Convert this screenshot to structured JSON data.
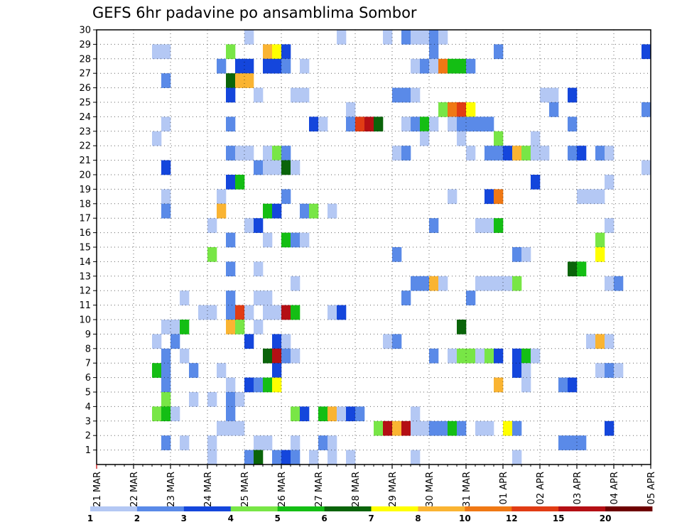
{
  "chart_data": {
    "type": "heatmap",
    "title": "GEFS 6hr padavine po ansamblima Sombor",
    "xlabel": "",
    "ylabel": "",
    "x_ticks": [
      "21 MAR",
      "22 MAR",
      "23 MAR",
      "24 MAR",
      "25 MAR",
      "26 MAR",
      "27 MAR",
      "28 MAR",
      "29 MAR",
      "30 MAR",
      "31 MAR",
      "01 APR",
      "02 APR",
      "03 APR",
      "04 APR",
      "05 APR"
    ],
    "y_ticks": [
      "1",
      "2",
      "3",
      "4",
      "5",
      "6",
      "7",
      "8",
      "9",
      "10",
      "11",
      "12",
      "13",
      "14",
      "15",
      "16",
      "17",
      "18",
      "19",
      "20",
      "21",
      "22",
      "23",
      "24",
      "25",
      "26",
      "27",
      "28",
      "29",
      "30"
    ],
    "x_range": [
      0,
      60
    ],
    "y_range": [
      0,
      30
    ],
    "grid": true,
    "legend_position": "bottom",
    "color_levels": [
      "1",
      "2",
      "3",
      "4",
      "5",
      "6",
      "7",
      "8",
      "10",
      "12",
      "15",
      "20"
    ],
    "colors": [
      "#b4c8f4",
      "#5a8ae8",
      "#1446dc",
      "#78e646",
      "#14be14",
      "#0a640a",
      "#ffff00",
      "#fab432",
      "#f07814",
      "#e13c14",
      "#b40f14",
      "#6e0000"
    ],
    "cells": [
      [
        6,
        29,
        0
      ],
      [
        7,
        29,
        0
      ],
      [
        16,
        30,
        0
      ],
      [
        26,
        30,
        0
      ],
      [
        31,
        30,
        0
      ],
      [
        33,
        30,
        1
      ],
      [
        34,
        30,
        0
      ],
      [
        35,
        30,
        0
      ],
      [
        36,
        30,
        1
      ],
      [
        37,
        30,
        0
      ],
      [
        14,
        29,
        3
      ],
      [
        18,
        29,
        7
      ],
      [
        19,
        29,
        6
      ],
      [
        20,
        29,
        2
      ],
      [
        36,
        29,
        1
      ],
      [
        43,
        29,
        1
      ],
      [
        59,
        29,
        2
      ],
      [
        13,
        28,
        1
      ],
      [
        15,
        28,
        2
      ],
      [
        16,
        28,
        2
      ],
      [
        18,
        28,
        2
      ],
      [
        19,
        28,
        2
      ],
      [
        20,
        28,
        1
      ],
      [
        22,
        28,
        0
      ],
      [
        34,
        28,
        0
      ],
      [
        35,
        28,
        1
      ],
      [
        36,
        28,
        0
      ],
      [
        37,
        28,
        8
      ],
      [
        38,
        28,
        4
      ],
      [
        39,
        28,
        4
      ],
      [
        40,
        28,
        1
      ],
      [
        7,
        27,
        1
      ],
      [
        14,
        27,
        5
      ],
      [
        15,
        27,
        7
      ],
      [
        16,
        27,
        7
      ],
      [
        14,
        26,
        2
      ],
      [
        17,
        26,
        0
      ],
      [
        21,
        26,
        0
      ],
      [
        22,
        26,
        0
      ],
      [
        32,
        26,
        1
      ],
      [
        33,
        26,
        1
      ],
      [
        34,
        26,
        0
      ],
      [
        48,
        26,
        0
      ],
      [
        49,
        26,
        0
      ],
      [
        51,
        26,
        2
      ],
      [
        27,
        25,
        0
      ],
      [
        37,
        25,
        3
      ],
      [
        38,
        25,
        8
      ],
      [
        39,
        25,
        9
      ],
      [
        40,
        25,
        6
      ],
      [
        49,
        25,
        1
      ],
      [
        59,
        25,
        1
      ],
      [
        7,
        24,
        0
      ],
      [
        14,
        24,
        1
      ],
      [
        23,
        24,
        2
      ],
      [
        24,
        24,
        0
      ],
      [
        27,
        24,
        1
      ],
      [
        28,
        24,
        9
      ],
      [
        29,
        24,
        10
      ],
      [
        30,
        24,
        5
      ],
      [
        33,
        24,
        0
      ],
      [
        34,
        24,
        1
      ],
      [
        35,
        24,
        4
      ],
      [
        36,
        24,
        0
      ],
      [
        38,
        24,
        0
      ],
      [
        39,
        24,
        1
      ],
      [
        40,
        24,
        1
      ],
      [
        41,
        24,
        1
      ],
      [
        42,
        24,
        1
      ],
      [
        51,
        24,
        1
      ],
      [
        6,
        23,
        0
      ],
      [
        35,
        23,
        0
      ],
      [
        39,
        23,
        0
      ],
      [
        43,
        23,
        3
      ],
      [
        47,
        23,
        0
      ],
      [
        14,
        22,
        1
      ],
      [
        15,
        22,
        0
      ],
      [
        16,
        22,
        0
      ],
      [
        18,
        22,
        0
      ],
      [
        19,
        22,
        3
      ],
      [
        20,
        22,
        1
      ],
      [
        32,
        22,
        0
      ],
      [
        33,
        22,
        1
      ],
      [
        40,
        22,
        0
      ],
      [
        42,
        22,
        1
      ],
      [
        43,
        22,
        1
      ],
      [
        44,
        22,
        2
      ],
      [
        45,
        22,
        7
      ],
      [
        46,
        22,
        3
      ],
      [
        47,
        22,
        0
      ],
      [
        48,
        22,
        0
      ],
      [
        51,
        22,
        1
      ],
      [
        52,
        22,
        2
      ],
      [
        54,
        22,
        1
      ],
      [
        55,
        22,
        0
      ],
      [
        7,
        21,
        2
      ],
      [
        17,
        21,
        1
      ],
      [
        18,
        21,
        0
      ],
      [
        19,
        21,
        0
      ],
      [
        20,
        21,
        5
      ],
      [
        21,
        21,
        0
      ],
      [
        59,
        21,
        0
      ],
      [
        14,
        20,
        2
      ],
      [
        15,
        20,
        4
      ],
      [
        47,
        20,
        2
      ],
      [
        55,
        20,
        0
      ],
      [
        7,
        19,
        0
      ],
      [
        13,
        19,
        0
      ],
      [
        20,
        19,
        1
      ],
      [
        38,
        19,
        0
      ],
      [
        42,
        19,
        2
      ],
      [
        43,
        19,
        8
      ],
      [
        52,
        19,
        0
      ],
      [
        53,
        19,
        0
      ],
      [
        54,
        19,
        0
      ],
      [
        7,
        18,
        1
      ],
      [
        13,
        18,
        7
      ],
      [
        18,
        18,
        4
      ],
      [
        19,
        18,
        2
      ],
      [
        22,
        18,
        1
      ],
      [
        23,
        18,
        3
      ],
      [
        25,
        18,
        0
      ],
      [
        12,
        17,
        0
      ],
      [
        16,
        17,
        0
      ],
      [
        17,
        17,
        2
      ],
      [
        36,
        17,
        1
      ],
      [
        41,
        17,
        0
      ],
      [
        42,
        17,
        0
      ],
      [
        43,
        17,
        4
      ],
      [
        55,
        17,
        0
      ],
      [
        14,
        16,
        1
      ],
      [
        18,
        16,
        0
      ],
      [
        20,
        16,
        4
      ],
      [
        21,
        16,
        1
      ],
      [
        22,
        16,
        0
      ],
      [
        54,
        16,
        3
      ],
      [
        12,
        15,
        3
      ],
      [
        32,
        15,
        1
      ],
      [
        45,
        15,
        1
      ],
      [
        46,
        15,
        0
      ],
      [
        54,
        15,
        6
      ],
      [
        14,
        14,
        1
      ],
      [
        17,
        14,
        0
      ],
      [
        51,
        14,
        5
      ],
      [
        52,
        14,
        4
      ],
      [
        21,
        13,
        0
      ],
      [
        34,
        13,
        1
      ],
      [
        35,
        13,
        1
      ],
      [
        36,
        13,
        7
      ],
      [
        37,
        13,
        0
      ],
      [
        41,
        13,
        0
      ],
      [
        42,
        13,
        0
      ],
      [
        43,
        13,
        0
      ],
      [
        44,
        13,
        0
      ],
      [
        45,
        13,
        3
      ],
      [
        55,
        13,
        0
      ],
      [
        56,
        13,
        1
      ],
      [
        9,
        12,
        0
      ],
      [
        14,
        12,
        1
      ],
      [
        17,
        12,
        0
      ],
      [
        18,
        12,
        0
      ],
      [
        33,
        12,
        1
      ],
      [
        40,
        12,
        1
      ],
      [
        11,
        11,
        0
      ],
      [
        12,
        11,
        0
      ],
      [
        14,
        11,
        1
      ],
      [
        15,
        11,
        9
      ],
      [
        16,
        11,
        0
      ],
      [
        18,
        11,
        0
      ],
      [
        19,
        11,
        0
      ],
      [
        20,
        11,
        10
      ],
      [
        21,
        11,
        4
      ],
      [
        25,
        11,
        0
      ],
      [
        26,
        11,
        2
      ],
      [
        7,
        10,
        0
      ],
      [
        8,
        10,
        0
      ],
      [
        9,
        10,
        4
      ],
      [
        14,
        10,
        7
      ],
      [
        15,
        10,
        3
      ],
      [
        17,
        10,
        0
      ],
      [
        39,
        10,
        5
      ],
      [
        6,
        9,
        0
      ],
      [
        8,
        9,
        1
      ],
      [
        16,
        9,
        2
      ],
      [
        19,
        9,
        2
      ],
      [
        20,
        9,
        0
      ],
      [
        31,
        9,
        0
      ],
      [
        32,
        9,
        1
      ],
      [
        53,
        9,
        0
      ],
      [
        54,
        9,
        7
      ],
      [
        55,
        9,
        0
      ],
      [
        7,
        8,
        1
      ],
      [
        9,
        8,
        0
      ],
      [
        18,
        8,
        5
      ],
      [
        19,
        8,
        10
      ],
      [
        20,
        8,
        1
      ],
      [
        21,
        8,
        0
      ],
      [
        36,
        8,
        1
      ],
      [
        38,
        8,
        0
      ],
      [
        39,
        8,
        3
      ],
      [
        40,
        8,
        3
      ],
      [
        41,
        8,
        0
      ],
      [
        42,
        8,
        3
      ],
      [
        43,
        8,
        2
      ],
      [
        45,
        8,
        2
      ],
      [
        46,
        8,
        4
      ],
      [
        47,
        8,
        0
      ],
      [
        6,
        7,
        4
      ],
      [
        7,
        7,
        1
      ],
      [
        10,
        7,
        1
      ],
      [
        13,
        7,
        0
      ],
      [
        19,
        7,
        2
      ],
      [
        45,
        7,
        2
      ],
      [
        46,
        7,
        0
      ],
      [
        54,
        7,
        0
      ],
      [
        55,
        7,
        1
      ],
      [
        56,
        7,
        0
      ],
      [
        7,
        6,
        1
      ],
      [
        14,
        6,
        0
      ],
      [
        16,
        6,
        2
      ],
      [
        17,
        6,
        1
      ],
      [
        18,
        6,
        4
      ],
      [
        19,
        6,
        6
      ],
      [
        43,
        6,
        7
      ],
      [
        46,
        6,
        0
      ],
      [
        50,
        6,
        1
      ],
      [
        51,
        6,
        2
      ],
      [
        7,
        5,
        3
      ],
      [
        10,
        5,
        0
      ],
      [
        12,
        5,
        0
      ],
      [
        14,
        5,
        1
      ],
      [
        15,
        5,
        0
      ],
      [
        6,
        4,
        3
      ],
      [
        7,
        4,
        4
      ],
      [
        8,
        4,
        0
      ],
      [
        14,
        4,
        1
      ],
      [
        21,
        4,
        3
      ],
      [
        22,
        4,
        2
      ],
      [
        24,
        4,
        4
      ],
      [
        25,
        4,
        7
      ],
      [
        26,
        4,
        0
      ],
      [
        27,
        4,
        2
      ],
      [
        28,
        4,
        1
      ],
      [
        34,
        4,
        0
      ],
      [
        13,
        3,
        0
      ],
      [
        14,
        3,
        0
      ],
      [
        15,
        3,
        0
      ],
      [
        30,
        3,
        3
      ],
      [
        31,
        3,
        10
      ],
      [
        32,
        3,
        7
      ],
      [
        33,
        3,
        10
      ],
      [
        34,
        3,
        0
      ],
      [
        35,
        3,
        0
      ],
      [
        36,
        3,
        1
      ],
      [
        37,
        3,
        1
      ],
      [
        38,
        3,
        4
      ],
      [
        39,
        3,
        1
      ],
      [
        41,
        3,
        0
      ],
      [
        42,
        3,
        0
      ],
      [
        44,
        3,
        6
      ],
      [
        45,
        3,
        1
      ],
      [
        55,
        3,
        2
      ],
      [
        7,
        2,
        1
      ],
      [
        9,
        2,
        0
      ],
      [
        12,
        2,
        0
      ],
      [
        17,
        2,
        0
      ],
      [
        18,
        2,
        0
      ],
      [
        21,
        2,
        0
      ],
      [
        24,
        2,
        1
      ],
      [
        25,
        2,
        0
      ],
      [
        50,
        2,
        1
      ],
      [
        51,
        2,
        1
      ],
      [
        52,
        2,
        1
      ],
      [
        12,
        1,
        0
      ],
      [
        16,
        1,
        1
      ],
      [
        17,
        1,
        5
      ],
      [
        19,
        1,
        1
      ],
      [
        20,
        1,
        2
      ],
      [
        21,
        1,
        1
      ],
      [
        23,
        1,
        0
      ],
      [
        25,
        1,
        0
      ],
      [
        27,
        1,
        0
      ],
      [
        34,
        1,
        0
      ],
      [
        45,
        1,
        0
      ]
    ]
  }
}
